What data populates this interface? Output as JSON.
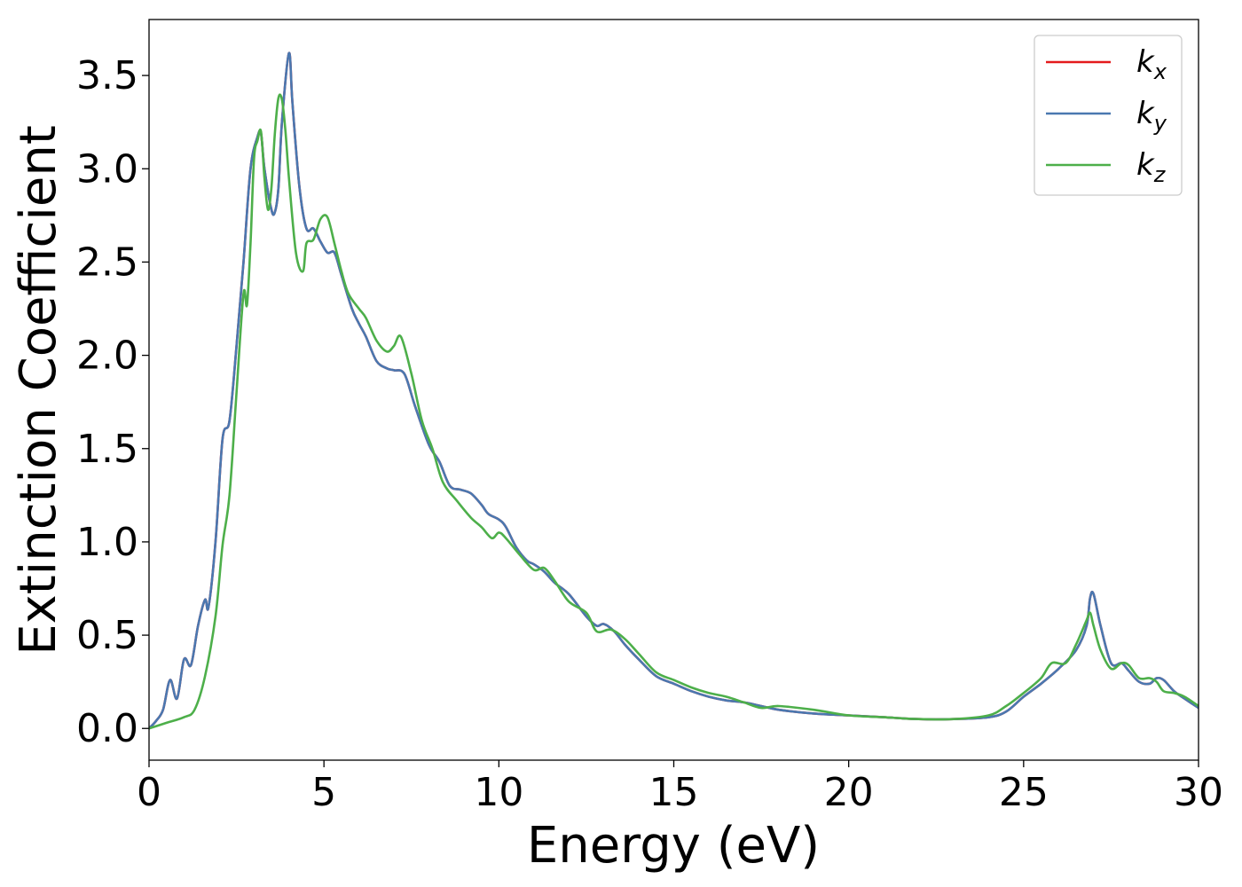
{
  "chart_data": {
    "type": "line",
    "xlabel": "Energy (eV)",
    "ylabel": "Extinction Coefficient",
    "xlim": [
      0,
      30
    ],
    "ylim": [
      -0.17,
      3.8
    ],
    "xticks": [
      0,
      5,
      10,
      15,
      20,
      25,
      30
    ],
    "xtick_labels": [
      "0",
      "5",
      "10",
      "15",
      "20",
      "25",
      "30"
    ],
    "yticks": [
      0.0,
      0.5,
      1.0,
      1.5,
      2.0,
      2.5,
      3.0,
      3.5
    ],
    "ytick_labels": [
      "0.0",
      "0.5",
      "1.0",
      "1.5",
      "2.0",
      "2.5",
      "3.0",
      "3.5"
    ],
    "grid": false,
    "legend_position": "top-right",
    "series": [
      {
        "name": "kx",
        "label_main": "k",
        "label_sub": "x",
        "color": "#e41a1c",
        "x": [
          0,
          0.2,
          0.4,
          0.6,
          0.8,
          1.0,
          1.2,
          1.4,
          1.6,
          1.7,
          1.9,
          2.1,
          2.3,
          2.5,
          2.7,
          2.9,
          3.1,
          3.2,
          3.3,
          3.5,
          3.6,
          3.7,
          3.8,
          4.0,
          4.1,
          4.3,
          4.5,
          4.7,
          4.9,
          5.1,
          5.3,
          5.5,
          5.8,
          6.0,
          6.2,
          6.5,
          6.8,
          7.0,
          7.3,
          7.6,
          8.0,
          8.3,
          8.6,
          8.9,
          9.2,
          9.5,
          9.7,
          10.0,
          10.2,
          10.5,
          10.8,
          11.0,
          11.3,
          11.6,
          12.0,
          12.5,
          12.8,
          13.0,
          13.3,
          13.6,
          14.0,
          14.5,
          15.0,
          15.5,
          16.0,
          16.5,
          17.0,
          17.5,
          18.0,
          19.0,
          20.0,
          21.0,
          22.0,
          23.0,
          24.0,
          24.5,
          25.0,
          25.5,
          26.0,
          26.5,
          26.8,
          26.9,
          27.0,
          27.2,
          27.5,
          27.8,
          28.0,
          28.3,
          28.6,
          28.8,
          29.0,
          29.3,
          29.6,
          30.0
        ],
        "y": [
          0.0,
          0.04,
          0.1,
          0.26,
          0.16,
          0.37,
          0.34,
          0.55,
          0.69,
          0.65,
          1.0,
          1.55,
          1.65,
          2.05,
          2.5,
          3.0,
          3.17,
          3.19,
          3.0,
          2.78,
          2.77,
          2.9,
          3.25,
          3.62,
          3.35,
          2.9,
          2.68,
          2.68,
          2.61,
          2.55,
          2.55,
          2.43,
          2.25,
          2.17,
          2.1,
          1.97,
          1.93,
          1.92,
          1.9,
          1.73,
          1.52,
          1.43,
          1.3,
          1.28,
          1.26,
          1.2,
          1.15,
          1.12,
          1.08,
          0.97,
          0.9,
          0.88,
          0.84,
          0.78,
          0.72,
          0.6,
          0.55,
          0.56,
          0.52,
          0.45,
          0.37,
          0.28,
          0.24,
          0.2,
          0.17,
          0.15,
          0.14,
          0.12,
          0.1,
          0.08,
          0.07,
          0.06,
          0.05,
          0.05,
          0.06,
          0.09,
          0.17,
          0.24,
          0.32,
          0.42,
          0.55,
          0.7,
          0.72,
          0.55,
          0.35,
          0.35,
          0.31,
          0.25,
          0.24,
          0.27,
          0.26,
          0.2,
          0.16,
          0.11
        ]
      },
      {
        "name": "ky",
        "label_main": "k",
        "label_sub": "y",
        "color": "#4a78b0",
        "x": [
          0,
          0.2,
          0.4,
          0.6,
          0.8,
          1.0,
          1.2,
          1.4,
          1.6,
          1.7,
          1.9,
          2.1,
          2.3,
          2.5,
          2.7,
          2.9,
          3.1,
          3.2,
          3.3,
          3.5,
          3.6,
          3.7,
          3.8,
          4.0,
          4.1,
          4.3,
          4.5,
          4.7,
          4.9,
          5.1,
          5.3,
          5.5,
          5.8,
          6.0,
          6.2,
          6.5,
          6.8,
          7.0,
          7.3,
          7.6,
          8.0,
          8.3,
          8.6,
          8.9,
          9.2,
          9.5,
          9.7,
          10.0,
          10.2,
          10.5,
          10.8,
          11.0,
          11.3,
          11.6,
          12.0,
          12.5,
          12.8,
          13.0,
          13.3,
          13.6,
          14.0,
          14.5,
          15.0,
          15.5,
          16.0,
          16.5,
          17.0,
          17.5,
          18.0,
          19.0,
          20.0,
          21.0,
          22.0,
          23.0,
          24.0,
          24.5,
          25.0,
          25.5,
          26.0,
          26.5,
          26.8,
          26.9,
          27.0,
          27.2,
          27.5,
          27.8,
          28.0,
          28.3,
          28.6,
          28.8,
          29.0,
          29.3,
          29.6,
          30.0
        ],
        "y": [
          0.0,
          0.04,
          0.1,
          0.26,
          0.16,
          0.37,
          0.34,
          0.55,
          0.69,
          0.65,
          1.0,
          1.55,
          1.65,
          2.05,
          2.5,
          3.0,
          3.17,
          3.19,
          3.0,
          2.78,
          2.77,
          2.9,
          3.25,
          3.62,
          3.35,
          2.9,
          2.68,
          2.68,
          2.61,
          2.55,
          2.55,
          2.43,
          2.25,
          2.17,
          2.1,
          1.97,
          1.93,
          1.92,
          1.9,
          1.73,
          1.52,
          1.43,
          1.3,
          1.28,
          1.26,
          1.2,
          1.15,
          1.12,
          1.08,
          0.97,
          0.9,
          0.88,
          0.84,
          0.78,
          0.72,
          0.6,
          0.55,
          0.56,
          0.52,
          0.45,
          0.37,
          0.28,
          0.24,
          0.2,
          0.17,
          0.15,
          0.14,
          0.12,
          0.1,
          0.08,
          0.07,
          0.06,
          0.05,
          0.05,
          0.06,
          0.09,
          0.17,
          0.24,
          0.32,
          0.42,
          0.55,
          0.7,
          0.72,
          0.55,
          0.35,
          0.35,
          0.31,
          0.25,
          0.24,
          0.27,
          0.26,
          0.2,
          0.16,
          0.11
        ]
      },
      {
        "name": "kz",
        "label_main": "k",
        "label_sub": "z",
        "color": "#4daf4a",
        "x": [
          0,
          0.5,
          1.0,
          1.3,
          1.6,
          1.9,
          2.1,
          2.3,
          2.5,
          2.7,
          2.8,
          2.9,
          3.0,
          3.1,
          3.2,
          3.3,
          3.4,
          3.5,
          3.6,
          3.7,
          3.8,
          3.9,
          4.0,
          4.2,
          4.4,
          4.5,
          4.7,
          4.9,
          5.1,
          5.3,
          5.5,
          5.7,
          6.0,
          6.2,
          6.5,
          6.8,
          7.0,
          7.2,
          7.5,
          7.8,
          8.1,
          8.4,
          8.8,
          9.2,
          9.5,
          9.8,
          10.0,
          10.2,
          10.6,
          11.0,
          11.3,
          11.6,
          12.0,
          12.5,
          12.8,
          13.2,
          13.6,
          14.0,
          14.5,
          15.0,
          15.5,
          16.0,
          16.5,
          17.0,
          17.5,
          18.0,
          19.0,
          20.0,
          21.0,
          22.0,
          23.0,
          24.0,
          24.5,
          25.0,
          25.5,
          25.8,
          26.2,
          26.5,
          26.8,
          26.9,
          27.0,
          27.2,
          27.5,
          27.8,
          28.0,
          28.3,
          28.6,
          28.8,
          29.0,
          29.3,
          29.6,
          30.0
        ],
        "y": [
          0.0,
          0.03,
          0.06,
          0.1,
          0.28,
          0.6,
          0.98,
          1.25,
          1.8,
          2.33,
          2.27,
          2.6,
          3.05,
          3.15,
          3.2,
          2.95,
          2.78,
          2.9,
          3.2,
          3.38,
          3.37,
          3.2,
          2.95,
          2.55,
          2.45,
          2.6,
          2.62,
          2.73,
          2.74,
          2.6,
          2.45,
          2.33,
          2.25,
          2.2,
          2.08,
          2.02,
          2.05,
          2.1,
          1.9,
          1.65,
          1.5,
          1.32,
          1.22,
          1.13,
          1.08,
          1.02,
          1.05,
          1.02,
          0.93,
          0.85,
          0.86,
          0.79,
          0.68,
          0.62,
          0.52,
          0.53,
          0.48,
          0.4,
          0.3,
          0.26,
          0.22,
          0.19,
          0.17,
          0.14,
          0.11,
          0.12,
          0.1,
          0.07,
          0.06,
          0.05,
          0.05,
          0.07,
          0.12,
          0.19,
          0.27,
          0.35,
          0.35,
          0.45,
          0.58,
          0.62,
          0.55,
          0.42,
          0.32,
          0.35,
          0.34,
          0.27,
          0.27,
          0.25,
          0.2,
          0.19,
          0.17,
          0.12
        ]
      }
    ]
  }
}
